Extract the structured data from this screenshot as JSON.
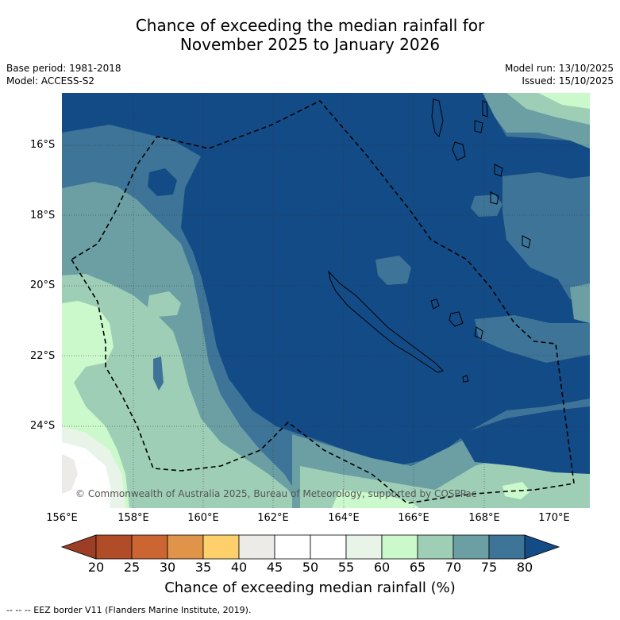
{
  "title": {
    "line1": "Chance of exceeding the median rainfall for",
    "line2": "November 2025 to January 2026"
  },
  "meta": {
    "base_period": "Base period: 1981-2018",
    "model": "Model: ACCESS-S2",
    "model_run": "Model run: 13/10/2025",
    "issued": "Issued: 15/10/2025"
  },
  "map": {
    "lat_labels": [
      "16°S",
      "18°S",
      "20°S",
      "22°S",
      "24°S"
    ],
    "lon_labels": [
      "156°E",
      "158°E",
      "160°E",
      "162°E",
      "164°E",
      "166°E",
      "168°E",
      "170°E"
    ],
    "copyright": "© Commonwealth of Australia 2025, Bureau of Meteorology, supported by COSPPac",
    "colors": {
      "gt80": "#134b86",
      "c75_80": "#3e7497",
      "c70_75": "#6b9fa4",
      "c65_70": "#9ecfb6",
      "c60_65": "#cbf9cb",
      "c55_60": "#e9f4e9",
      "c50_55": "#ffffff",
      "c45_50": "#ffffff",
      "c40_45": "#ecebe8"
    }
  },
  "colorbar": {
    "ticks": [
      "20",
      "25",
      "30",
      "35",
      "40",
      "45",
      "50",
      "55",
      "60",
      "65",
      "70",
      "75",
      "80"
    ],
    "colors": [
      "#9c3d25",
      "#b04c27",
      "#cb6532",
      "#e0944a",
      "#fdd06b",
      "#ecebe8",
      "#ffffff",
      "#ffffff",
      "#e9f4e9",
      "#cbf9cb",
      "#9ecfb6",
      "#6b9fa4",
      "#3e7497",
      "#134b86"
    ],
    "label": "Chance of exceeding median rainfall (%)"
  },
  "footer": "--  --  -- EEZ border V11 (Flanders Marine Institute, 2019)."
}
